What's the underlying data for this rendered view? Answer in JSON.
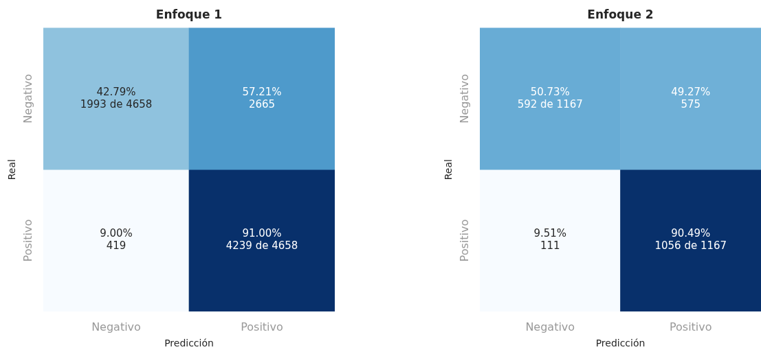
{
  "chart_data": [
    {
      "type": "heatmap",
      "data_labels": true,
      "title": "Enfoque 1",
      "xlabel": "Predicción",
      "ylabel": "Real",
      "categories": [
        "Negativo",
        "Positivo"
      ],
      "y_categories": [
        "Negativo",
        "Positivo"
      ],
      "cells": [
        [
          42.79,
          57.21
        ],
        [
          9.0,
          91.0
        ]
      ],
      "cell_labels": [
        [
          "42.79%",
          "57.21%"
        ],
        [
          "9.00%",
          "91.00%"
        ]
      ],
      "annotations": [
        "1993 de 4658",
        "2665",
        "419",
        "4239 de 4658"
      ]
    },
    {
      "type": "heatmap",
      "data_labels": true,
      "title": "Enfoque 2",
      "xlabel": "Predicción",
      "ylabel": "Real",
      "categories": [
        "Negativo",
        "Positivo"
      ],
      "y_categories": [
        "Negativo",
        "Positivo"
      ],
      "cells": [
        [
          50.73,
          49.27
        ],
        [
          9.51,
          90.49
        ]
      ],
      "cell_labels": [
        [
          "50.73%",
          "49.27%"
        ],
        [
          "9.51%",
          "90.49%"
        ]
      ],
      "annotations": [
        "592 de 1167",
        "575",
        "111",
        "1056 de 1167"
      ]
    }
  ]
}
